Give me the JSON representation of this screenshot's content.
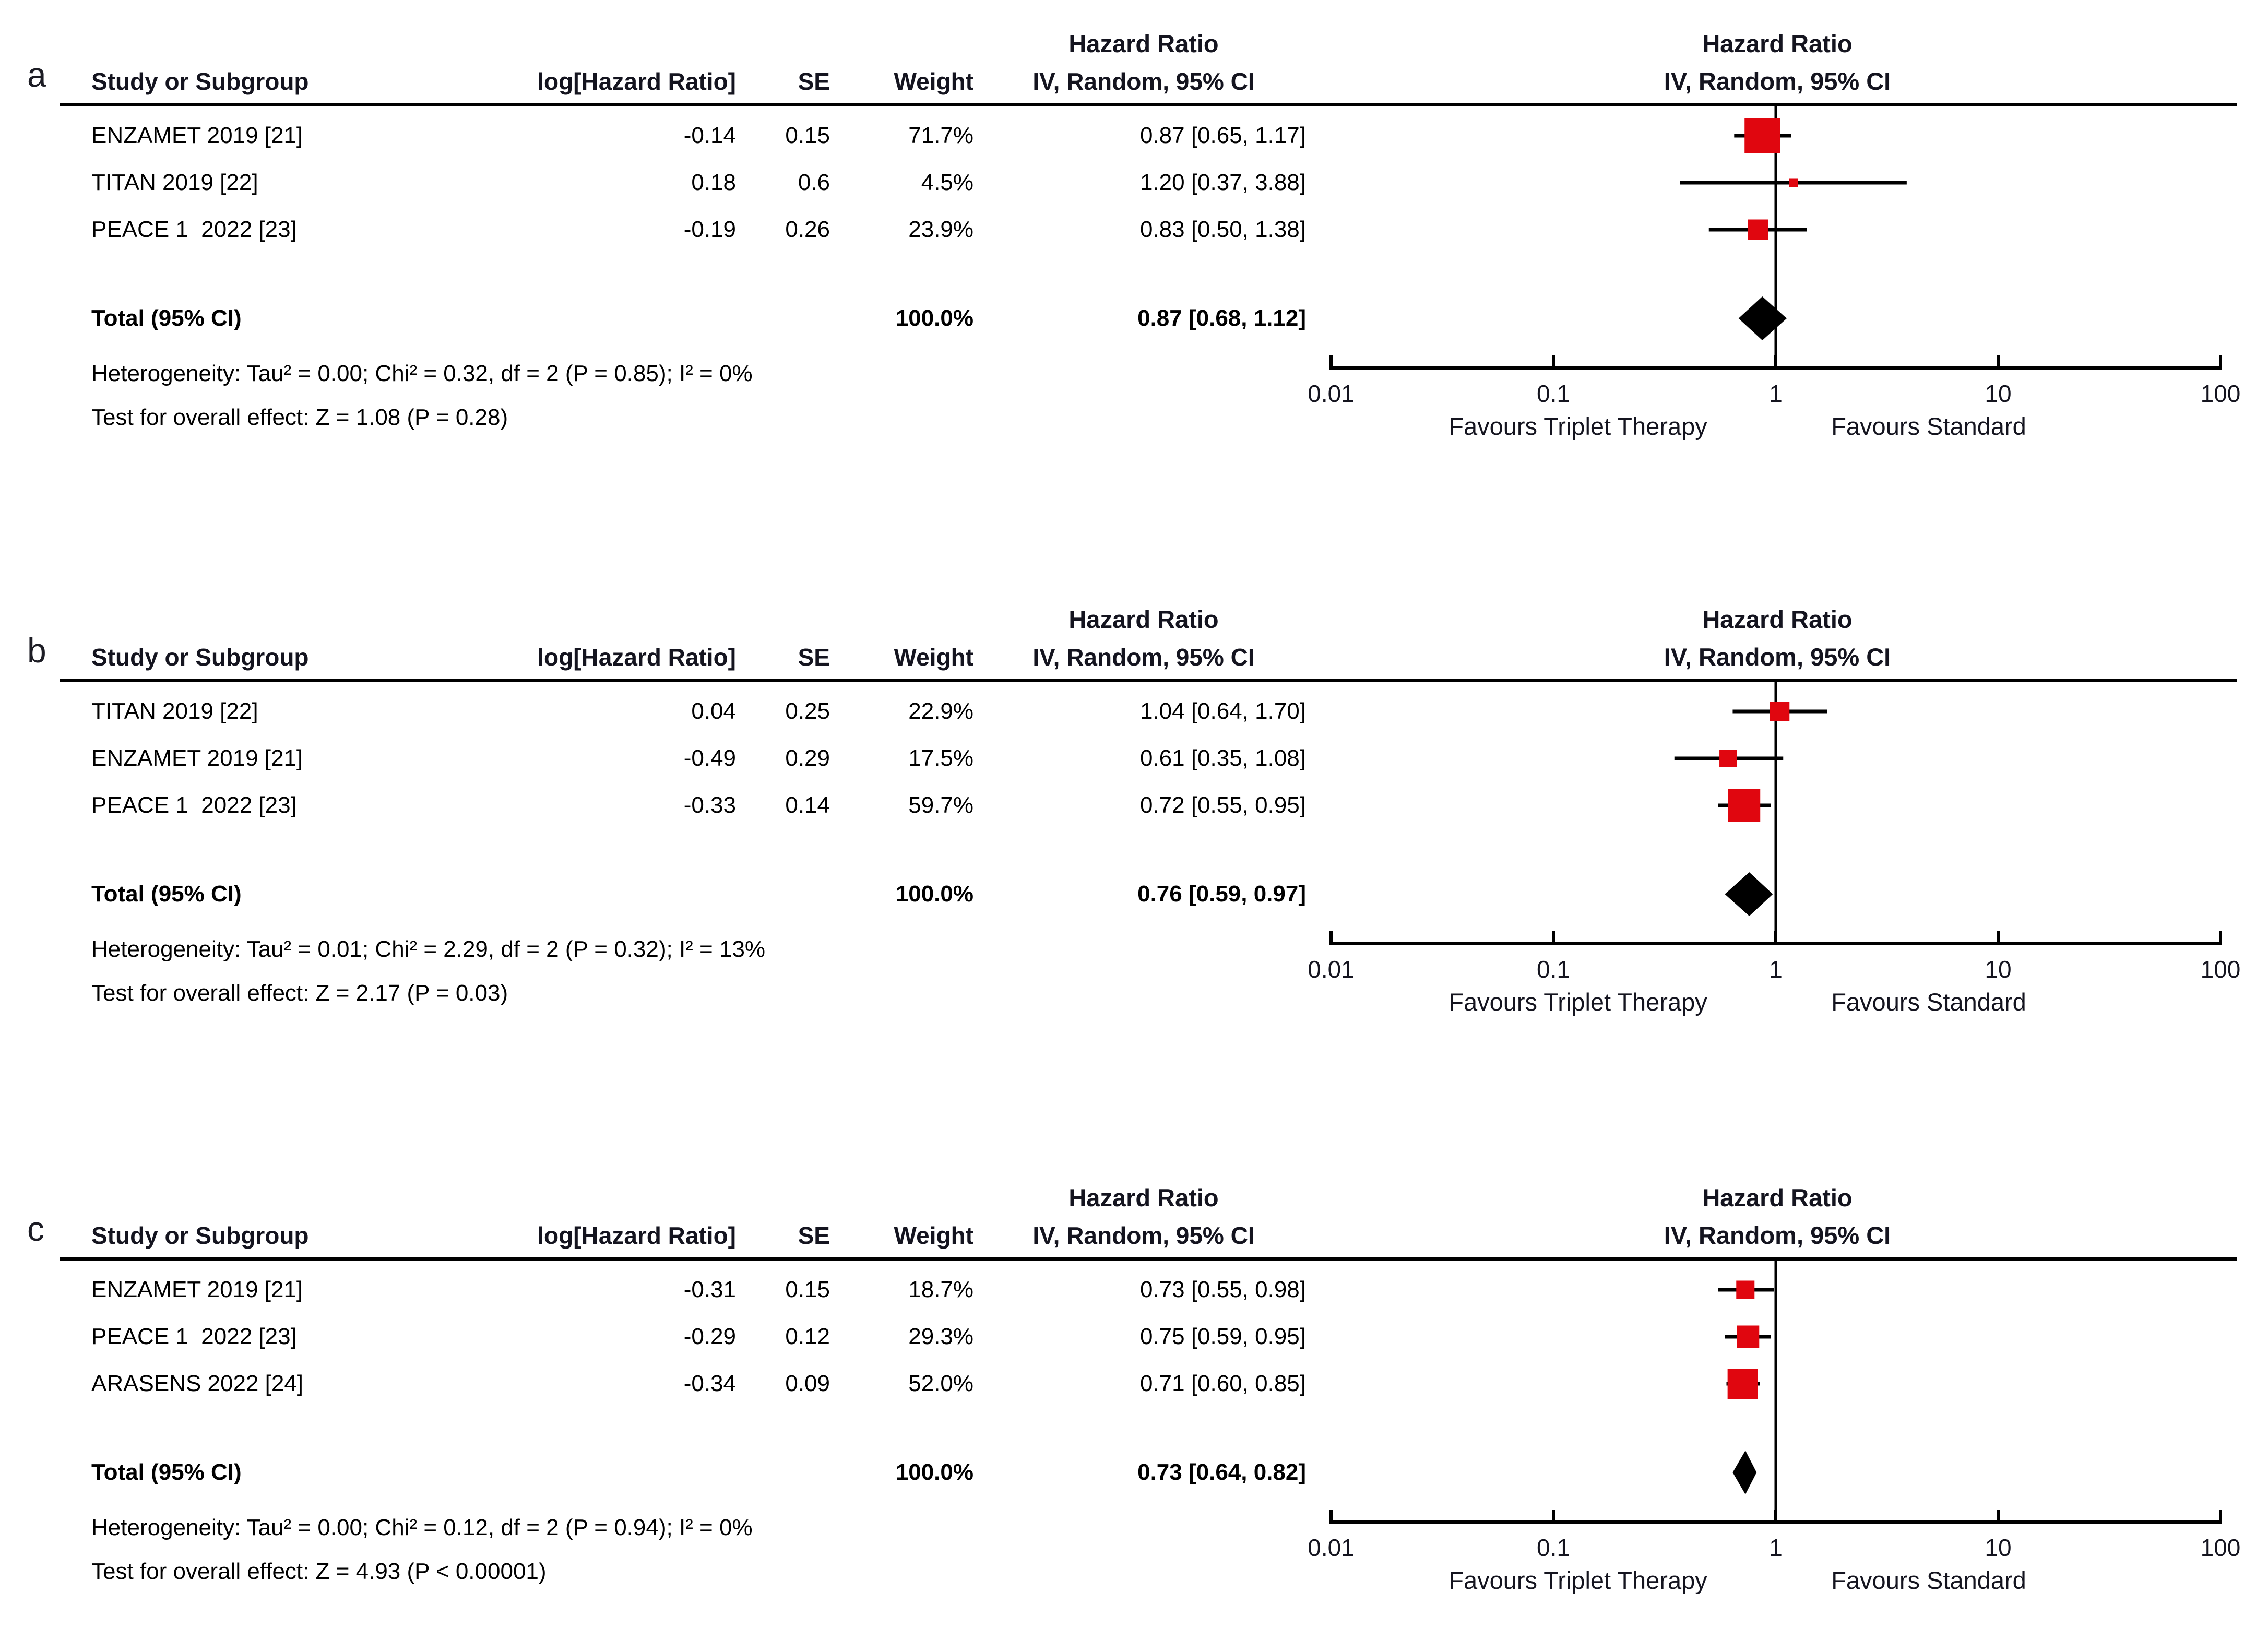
{
  "chart_data": {
    "type": "forest",
    "marker_color": "#e0060f",
    "diamond_color": "#000000",
    "labels": {
      "hazard_ratio": "Hazard Ratio",
      "method": "IV, Random, 95% CI",
      "study_col": "Study or Subgroup",
      "log_hr_col": "log[Hazard Ratio]",
      "se_col": "SE",
      "weight_col": "Weight",
      "favours_left": "Favours Triplet Therapy",
      "favours_right": "Favours Standard"
    },
    "axis": {
      "scale": "log",
      "min": 0.01,
      "max": 100,
      "ticks": [
        0.01,
        0.1,
        1,
        10,
        100
      ],
      "tick_labels": [
        "0.01",
        "0.1",
        "1",
        "10",
        "100"
      ]
    },
    "panels": [
      {
        "label": "a",
        "studies": [
          {
            "name": "ENZAMET 2019 [21]",
            "log_hr": "-0.14",
            "se": "0.15",
            "weight": "71.7%",
            "weight_pct": 71.7,
            "estimate_text": "0.87 [0.65, 1.17]",
            "hr": 0.87,
            "ci_low": 0.65,
            "ci_high": 1.17
          },
          {
            "name": "TITAN 2019 [22]",
            "log_hr": "0.18",
            "se": "0.6",
            "weight": "4.5%",
            "weight_pct": 4.5,
            "estimate_text": "1.20 [0.37, 3.88]",
            "hr": 1.2,
            "ci_low": 0.37,
            "ci_high": 3.88
          },
          {
            "name": "PEACE 1  2022 [23]",
            "log_hr": "-0.19",
            "se": "0.26",
            "weight": "23.9%",
            "weight_pct": 23.9,
            "estimate_text": "0.83 [0.50, 1.38]",
            "hr": 0.83,
            "ci_low": 0.5,
            "ci_high": 1.38
          }
        ],
        "total": {
          "label": "Total (95% CI)",
          "weight": "100.0%",
          "estimate_text": "0.87 [0.68, 1.12]",
          "hr": 0.87,
          "ci_low": 0.68,
          "ci_high": 1.12
        },
        "heterogeneity": "Heterogeneity: Tau² = 0.00; Chi² = 0.32, df = 2 (P = 0.85); I² = 0%",
        "overall_effect": "Test for overall effect: Z = 1.08 (P = 0.28)"
      },
      {
        "label": "b",
        "studies": [
          {
            "name": "TITAN 2019 [22]",
            "log_hr": "0.04",
            "se": "0.25",
            "weight": "22.9%",
            "weight_pct": 22.9,
            "estimate_text": "1.04 [0.64, 1.70]",
            "hr": 1.04,
            "ci_low": 0.64,
            "ci_high": 1.7
          },
          {
            "name": "ENZAMET 2019 [21]",
            "log_hr": "-0.49",
            "se": "0.29",
            "weight": "17.5%",
            "weight_pct": 17.5,
            "estimate_text": "0.61 [0.35, 1.08]",
            "hr": 0.61,
            "ci_low": 0.35,
            "ci_high": 1.08
          },
          {
            "name": "PEACE 1  2022 [23]",
            "log_hr": "-0.33",
            "se": "0.14",
            "weight": "59.7%",
            "weight_pct": 59.7,
            "estimate_text": "0.72 [0.55, 0.95]",
            "hr": 0.72,
            "ci_low": 0.55,
            "ci_high": 0.95
          }
        ],
        "total": {
          "label": "Total (95% CI)",
          "weight": "100.0%",
          "estimate_text": "0.76 [0.59, 0.97]",
          "hr": 0.76,
          "ci_low": 0.59,
          "ci_high": 0.97
        },
        "heterogeneity": "Heterogeneity: Tau² = 0.01; Chi² = 2.29, df = 2 (P = 0.32); I² = 13%",
        "overall_effect": "Test for overall effect: Z = 2.17 (P = 0.03)"
      },
      {
        "label": "c",
        "studies": [
          {
            "name": "ENZAMET 2019 [21]",
            "log_hr": "-0.31",
            "se": "0.15",
            "weight": "18.7%",
            "weight_pct": 18.7,
            "estimate_text": "0.73 [0.55, 0.98]",
            "hr": 0.73,
            "ci_low": 0.55,
            "ci_high": 0.98
          },
          {
            "name": "PEACE 1  2022 [23]",
            "log_hr": "-0.29",
            "se": "0.12",
            "weight": "29.3%",
            "weight_pct": 29.3,
            "estimate_text": "0.75 [0.59, 0.95]",
            "hr": 0.75,
            "ci_low": 0.59,
            "ci_high": 0.95
          },
          {
            "name": "ARASENS 2022 [24]",
            "log_hr": "-0.34",
            "se": "0.09",
            "weight": "52.0%",
            "weight_pct": 52.0,
            "estimate_text": "0.71 [0.60, 0.85]",
            "hr": 0.71,
            "ci_low": 0.6,
            "ci_high": 0.85
          }
        ],
        "total": {
          "label": "Total (95% CI)",
          "weight": "100.0%",
          "estimate_text": "0.73 [0.64, 0.82]",
          "hr": 0.73,
          "ci_low": 0.64,
          "ci_high": 0.82
        },
        "heterogeneity": "Heterogeneity: Tau² = 0.00; Chi² = 0.12, df = 2 (P = 0.94); I² = 0%",
        "overall_effect": "Test for overall effect: Z = 4.93 (P < 0.00001)"
      }
    ]
  }
}
